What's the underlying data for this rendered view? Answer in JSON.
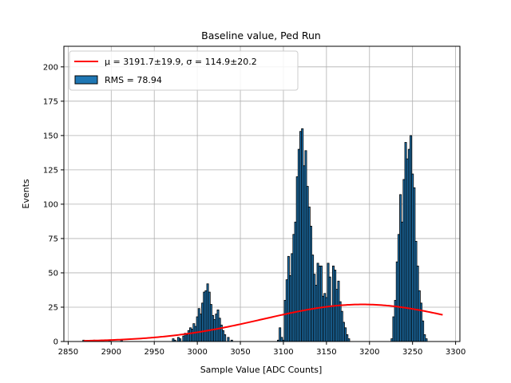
{
  "chart_data": {
    "type": "bar",
    "title": "Baseline value, Ped Run",
    "xlabel": "Sample Value [ADC Counts]",
    "ylabel": "Events",
    "xlim": [
      2845,
      3305
    ],
    "ylim": [
      0,
      215
    ],
    "x_ticks": [
      2850,
      2900,
      2950,
      3000,
      3050,
      3100,
      3150,
      3200,
      3250,
      3300
    ],
    "y_ticks": [
      0,
      25,
      50,
      75,
      100,
      125,
      150,
      175,
      200
    ],
    "grid": true,
    "legend_position": "top-left",
    "bin_width": 2,
    "bar_color": "#1f77b4",
    "bar_edge_color": "#000000",
    "fit_color": "#ff0000",
    "legend": {
      "fit_label": "μ = 3191.7±19.9, σ = 114.9±20.2",
      "hist_label": "RMS = 78.94"
    },
    "fit": {
      "mu": 3191.7,
      "sigma": 114.9,
      "amplitude": 27,
      "x_range": [
        2868,
        3285
      ]
    },
    "histogram": [
      {
        "x": 2868,
        "y": 1
      },
      {
        "x": 2880,
        "y": 1
      },
      {
        "x": 2898,
        "y": 1
      },
      {
        "x": 2912,
        "y": 1
      },
      {
        "x": 2972,
        "y": 2
      },
      {
        "x": 2974,
        "y": 1
      },
      {
        "x": 2978,
        "y": 3
      },
      {
        "x": 2980,
        "y": 2
      },
      {
        "x": 2984,
        "y": 4
      },
      {
        "x": 2986,
        "y": 6
      },
      {
        "x": 2988,
        "y": 5
      },
      {
        "x": 2990,
        "y": 8
      },
      {
        "x": 2992,
        "y": 10
      },
      {
        "x": 2994,
        "y": 9
      },
      {
        "x": 2996,
        "y": 13
      },
      {
        "x": 2998,
        "y": 11
      },
      {
        "x": 3000,
        "y": 18
      },
      {
        "x": 3002,
        "y": 24
      },
      {
        "x": 3004,
        "y": 20
      },
      {
        "x": 3006,
        "y": 28
      },
      {
        "x": 3008,
        "y": 36
      },
      {
        "x": 3010,
        "y": 37
      },
      {
        "x": 3012,
        "y": 42
      },
      {
        "x": 3014,
        "y": 36
      },
      {
        "x": 3016,
        "y": 27
      },
      {
        "x": 3018,
        "y": 19
      },
      {
        "x": 3020,
        "y": 16
      },
      {
        "x": 3022,
        "y": 20
      },
      {
        "x": 3024,
        "y": 23
      },
      {
        "x": 3026,
        "y": 17
      },
      {
        "x": 3028,
        "y": 12
      },
      {
        "x": 3030,
        "y": 8
      },
      {
        "x": 3032,
        "y": 5
      },
      {
        "x": 3036,
        "y": 3
      },
      {
        "x": 3040,
        "y": 1
      },
      {
        "x": 3094,
        "y": 1
      },
      {
        "x": 3096,
        "y": 10
      },
      {
        "x": 3098,
        "y": 3
      },
      {
        "x": 3100,
        "y": 1
      },
      {
        "x": 3102,
        "y": 30
      },
      {
        "x": 3104,
        "y": 45
      },
      {
        "x": 3106,
        "y": 62
      },
      {
        "x": 3108,
        "y": 48
      },
      {
        "x": 3110,
        "y": 64
      },
      {
        "x": 3112,
        "y": 78
      },
      {
        "x": 3114,
        "y": 87
      },
      {
        "x": 3116,
        "y": 120
      },
      {
        "x": 3118,
        "y": 140
      },
      {
        "x": 3120,
        "y": 153
      },
      {
        "x": 3122,
        "y": 155
      },
      {
        "x": 3124,
        "y": 128
      },
      {
        "x": 3126,
        "y": 139
      },
      {
        "x": 3128,
        "y": 113
      },
      {
        "x": 3130,
        "y": 98
      },
      {
        "x": 3132,
        "y": 84
      },
      {
        "x": 3134,
        "y": 63
      },
      {
        "x": 3136,
        "y": 49
      },
      {
        "x": 3138,
        "y": 41
      },
      {
        "x": 3140,
        "y": 57
      },
      {
        "x": 3142,
        "y": 55
      },
      {
        "x": 3144,
        "y": 55
      },
      {
        "x": 3146,
        "y": 33
      },
      {
        "x": 3148,
        "y": 35
      },
      {
        "x": 3150,
        "y": 32
      },
      {
        "x": 3152,
        "y": 57
      },
      {
        "x": 3154,
        "y": 47
      },
      {
        "x": 3156,
        "y": 26
      },
      {
        "x": 3158,
        "y": 55
      },
      {
        "x": 3160,
        "y": 52
      },
      {
        "x": 3162,
        "y": 38
      },
      {
        "x": 3164,
        "y": 44
      },
      {
        "x": 3166,
        "y": 29
      },
      {
        "x": 3168,
        "y": 22
      },
      {
        "x": 3170,
        "y": 14
      },
      {
        "x": 3172,
        "y": 10
      },
      {
        "x": 3174,
        "y": 5
      },
      {
        "x": 3176,
        "y": 2
      },
      {
        "x": 3226,
        "y": 2
      },
      {
        "x": 3228,
        "y": 18
      },
      {
        "x": 3230,
        "y": 30
      },
      {
        "x": 3232,
        "y": 58
      },
      {
        "x": 3234,
        "y": 78
      },
      {
        "x": 3236,
        "y": 107
      },
      {
        "x": 3238,
        "y": 87
      },
      {
        "x": 3240,
        "y": 118
      },
      {
        "x": 3242,
        "y": 145
      },
      {
        "x": 3244,
        "y": 133
      },
      {
        "x": 3246,
        "y": 140
      },
      {
        "x": 3248,
        "y": 150
      },
      {
        "x": 3250,
        "y": 122
      },
      {
        "x": 3252,
        "y": 112
      },
      {
        "x": 3254,
        "y": 73
      },
      {
        "x": 3256,
        "y": 55
      },
      {
        "x": 3258,
        "y": 37
      },
      {
        "x": 3260,
        "y": 28
      },
      {
        "x": 3262,
        "y": 15
      },
      {
        "x": 3264,
        "y": 5
      },
      {
        "x": 3266,
        "y": 2
      }
    ]
  }
}
